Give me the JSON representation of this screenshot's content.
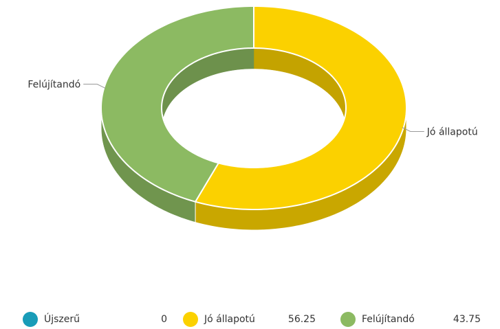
{
  "chart_data": {
    "type": "pie",
    "variant": "donut-3d",
    "series": [
      {
        "name": "Újszerű",
        "value": 0,
        "color": "#199CB8"
      },
      {
        "name": "Jó állapotú",
        "value": 56.25,
        "color": "#FBD100"
      },
      {
        "name": "Felújítandó",
        "value": 43.75,
        "color": "#8CBA62"
      }
    ],
    "legend_position": "bottom",
    "value_labels": [
      "0",
      "56.25",
      "43.75"
    ]
  }
}
